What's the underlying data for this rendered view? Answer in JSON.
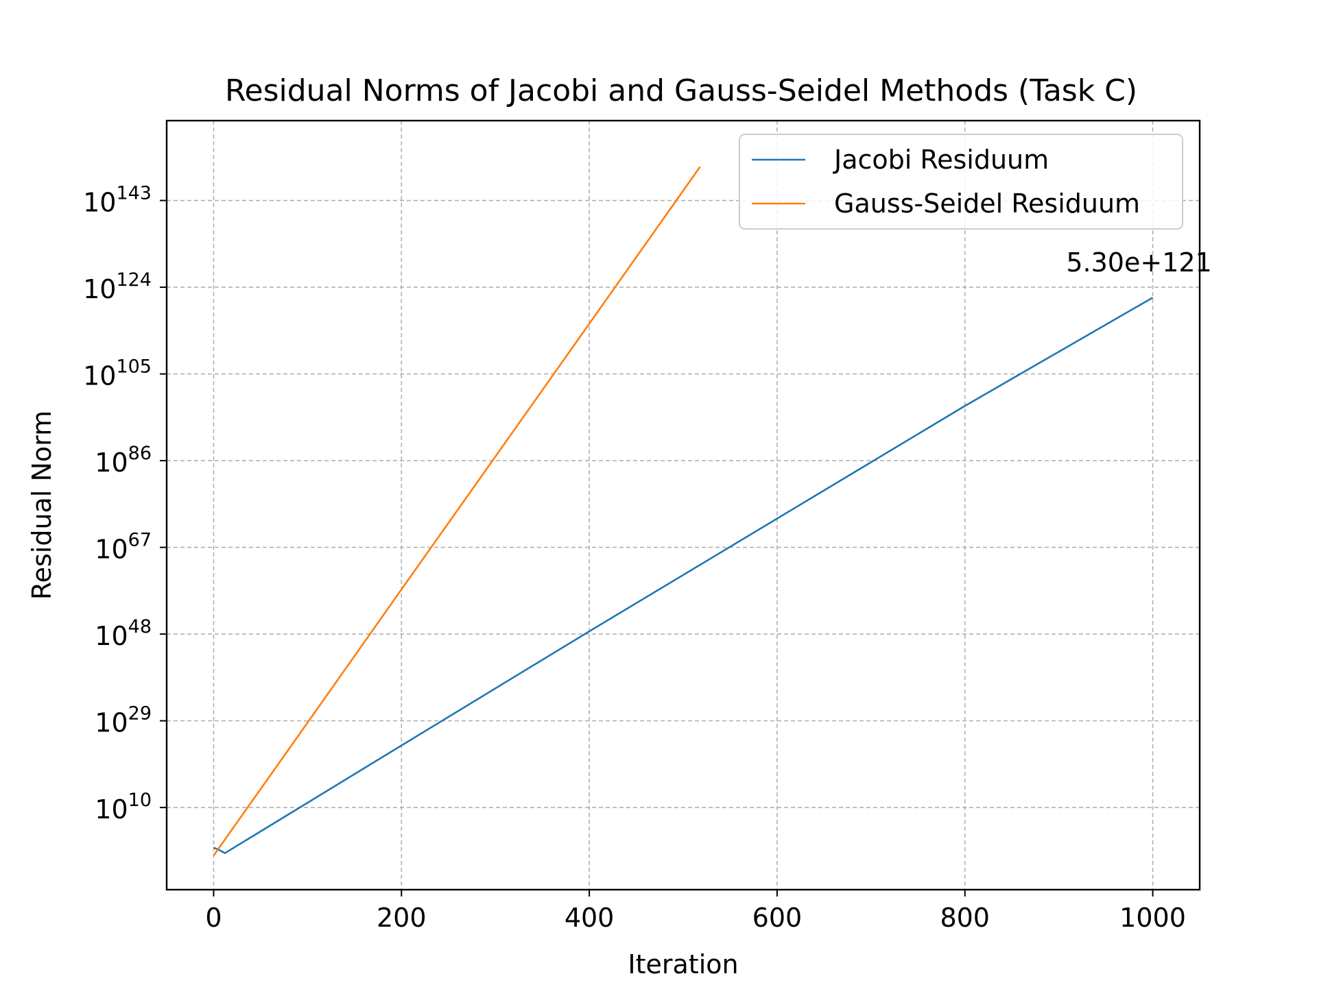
{
  "chart_data": {
    "type": "line",
    "title": "Residual Norms of Jacobi and Gauss-Seidel Methods (Task C)",
    "xlabel": "Iteration",
    "ylabel": "Residual Norm",
    "yscale": "log",
    "xlim": [
      -50,
      1050
    ],
    "ylim_log10": [
      -8,
      160.5
    ],
    "xticks": [
      0,
      200,
      400,
      600,
      800,
      1000
    ],
    "xtick_labels": [
      "0",
      "200",
      "400",
      "600",
      "800",
      "1000"
    ],
    "yticks_log10": [
      10,
      29,
      48,
      67,
      86,
      105,
      124,
      143
    ],
    "ytick_base": "10",
    "ytick_exponents": [
      "10",
      "29",
      "48",
      "67",
      "86",
      "105",
      "124",
      "143"
    ],
    "grid": true,
    "legend_position": "top-right",
    "series": [
      {
        "name": "Jacobi Residuum",
        "color": "#1f77b4",
        "points_log10": [
          [
            0,
            1.2
          ],
          [
            5,
            0.8
          ],
          [
            12,
            0.0
          ],
          [
            200,
            23.6
          ],
          [
            400,
            48.6
          ],
          [
            600,
            73.3
          ],
          [
            800,
            98.0
          ],
          [
            1000,
            121.72
          ]
        ]
      },
      {
        "name": "Gauss-Seidel Residuum",
        "color": "#ff7f0e",
        "points_log10": [
          [
            0,
            -0.5
          ],
          [
            100,
            28.6
          ],
          [
            200,
            57.8
          ],
          [
            300,
            86.9
          ],
          [
            400,
            116.0
          ],
          [
            518,
            150.4
          ]
        ]
      }
    ],
    "annotations": [
      {
        "text": "5.30e+121",
        "x": 1000,
        "y_log10": 121.72
      }
    ]
  }
}
